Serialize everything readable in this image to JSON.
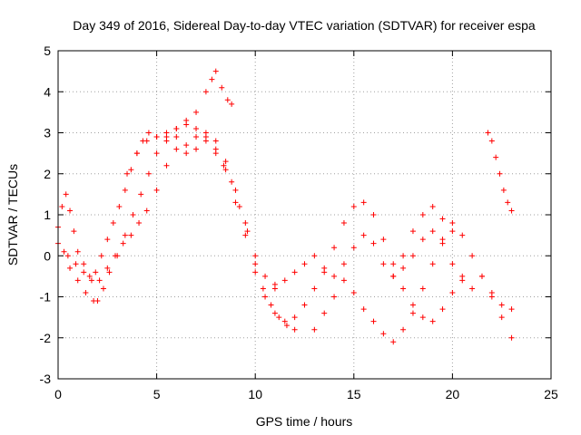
{
  "chart_data": {
    "type": "scatter",
    "title": "Day 349 of 2016, Sidereal Day-to-day VTEC variation (SDTVAR) for receiver espa",
    "xlabel": "GPS time / hours",
    "ylabel": "SDTVAR / TECUs",
    "xlim": [
      0,
      25
    ],
    "ylim": [
      -3,
      5
    ],
    "x_ticks": [
      0,
      5,
      10,
      15,
      20,
      25
    ],
    "y_ticks": [
      -3,
      -2,
      -1,
      0,
      1,
      2,
      3,
      4,
      5
    ],
    "grid": true,
    "legend": "none",
    "marker": "+",
    "color": "#ff0000",
    "series": [
      {
        "name": "trace-1",
        "x": [
          0.0,
          0.2,
          0.4,
          0.6,
          0.8,
          1.0,
          1.3,
          1.6,
          1.9,
          2.2,
          2.5,
          2.8,
          3.1,
          3.4,
          3.7,
          4.0,
          4.3,
          4.6,
          5.0,
          5.5,
          6.0,
          6.5,
          7.0,
          7.5,
          7.8,
          8.0,
          8.3,
          8.6,
          8.8
        ],
        "y": [
          0.7,
          1.2,
          1.5,
          1.1,
          0.6,
          0.1,
          -0.2,
          -0.5,
          -0.4,
          0.0,
          0.4,
          0.8,
          1.2,
          1.6,
          2.1,
          2.5,
          2.8,
          3.0,
          2.9,
          2.8,
          3.1,
          3.2,
          3.5,
          4.0,
          4.3,
          4.5,
          4.1,
          3.8,
          3.7
        ]
      },
      {
        "name": "trace-2",
        "x": [
          0.0,
          0.3,
          0.6,
          1.0,
          1.4,
          1.8,
          2.0,
          2.3,
          2.6,
          3.0,
          3.4,
          3.8,
          4.2,
          4.6,
          5.0,
          5.5,
          6.0,
          6.5,
          7.0,
          7.5,
          8.0,
          8.4,
          8.8,
          9.2,
          9.6,
          10.0,
          10.4,
          10.8,
          11.2,
          11.6,
          12.0
        ],
        "y": [
          0.3,
          0.1,
          -0.3,
          -0.6,
          -0.9,
          -1.1,
          -1.1,
          -0.8,
          -0.4,
          0.0,
          0.5,
          1.0,
          1.5,
          2.0,
          2.5,
          2.9,
          3.1,
          3.3,
          3.1,
          2.9,
          2.6,
          2.2,
          1.8,
          1.2,
          0.6,
          -0.2,
          -0.8,
          -1.2,
          -1.5,
          -1.7,
          -1.8
        ]
      },
      {
        "name": "trace-3",
        "x": [
          0.5,
          0.9,
          1.3,
          1.7,
          2.1,
          2.5,
          2.9,
          3.3,
          3.7,
          4.1,
          4.5,
          5.0,
          5.5,
          6.0,
          6.5,
          7.0,
          7.5,
          8.0,
          8.5,
          9.0,
          9.5,
          10.0,
          10.5,
          11.0,
          11.5
        ],
        "y": [
          0.0,
          -0.2,
          -0.4,
          -0.6,
          -0.6,
          -0.3,
          0.0,
          0.3,
          0.5,
          0.8,
          1.1,
          1.6,
          2.2,
          2.6,
          2.5,
          2.6,
          2.8,
          2.5,
          2.1,
          1.3,
          0.5,
          -0.4,
          -1.0,
          -1.4,
          -1.6
        ]
      },
      {
        "name": "trace-4",
        "x": [
          3.5,
          4.0,
          4.5,
          5.0,
          5.5,
          6.0,
          6.5,
          7.0,
          7.5,
          8.0,
          8.5,
          9.0,
          9.5,
          10.0,
          10.5,
          11.0
        ],
        "y": [
          2.0,
          2.5,
          2.8,
          2.9,
          3.0,
          2.9,
          2.7,
          2.9,
          3.0,
          2.8,
          2.3,
          1.6,
          0.8,
          0.0,
          -0.5,
          -0.7
        ]
      },
      {
        "name": "trace-5",
        "x": [
          11.0,
          11.5,
          12.0,
          12.5,
          13.0,
          13.5,
          14.0,
          14.5,
          15.0,
          15.5,
          16.0,
          16.5,
          17.0,
          17.5,
          18.0,
          18.5,
          19.0,
          19.5,
          20.0,
          20.5,
          21.0,
          21.5,
          22.0,
          22.5,
          23.0
        ],
        "y": [
          -0.8,
          -0.6,
          -0.4,
          -0.2,
          0.0,
          -0.3,
          -0.5,
          -0.2,
          0.2,
          0.5,
          0.3,
          -0.2,
          -0.5,
          -0.3,
          0.0,
          0.4,
          0.6,
          0.3,
          -0.2,
          -0.6,
          -0.8,
          -0.5,
          -0.9,
          -1.2,
          -1.3
        ]
      },
      {
        "name": "trace-6",
        "x": [
          12.0,
          12.5,
          13.0,
          13.5,
          14.0,
          14.5,
          15.0,
          15.5,
          16.0,
          16.5,
          17.0,
          17.5,
          18.0,
          18.5,
          19.0,
          19.5,
          20.0,
          20.5
        ],
        "y": [
          -1.5,
          -1.2,
          -0.8,
          -0.4,
          0.2,
          0.8,
          1.2,
          1.3,
          1.0,
          0.4,
          -0.2,
          -0.8,
          -1.2,
          -1.5,
          -1.6,
          -1.3,
          -0.9,
          -0.5
        ]
      },
      {
        "name": "trace-7",
        "x": [
          13.0,
          13.5,
          14.0,
          14.5,
          15.0,
          15.5,
          16.0,
          16.5,
          17.0,
          17.5,
          18.0,
          18.5,
          19.0,
          19.5,
          20.0,
          20.5,
          21.0,
          21.5,
          22.0,
          22.5,
          23.0
        ],
        "y": [
          -1.8,
          -1.4,
          -1.0,
          -0.6,
          -0.9,
          -1.3,
          -1.6,
          -1.9,
          -2.1,
          -1.8,
          -1.4,
          -0.8,
          -0.2,
          0.4,
          0.8,
          0.5,
          0.0,
          -0.5,
          -1.0,
          -1.5,
          -2.0
        ]
      },
      {
        "name": "trace-8",
        "x": [
          17.0,
          17.5,
          18.0,
          18.5,
          19.0,
          19.5,
          20.0
        ],
        "y": [
          -0.5,
          0.0,
          0.6,
          1.0,
          1.2,
          0.9,
          0.6
        ]
      },
      {
        "name": "trace-9",
        "x": [
          21.8,
          22.0,
          22.2,
          22.4,
          22.6,
          22.8,
          23.0
        ],
        "y": [
          3.0,
          2.8,
          2.4,
          2.0,
          1.6,
          1.3,
          1.1
        ]
      }
    ]
  }
}
